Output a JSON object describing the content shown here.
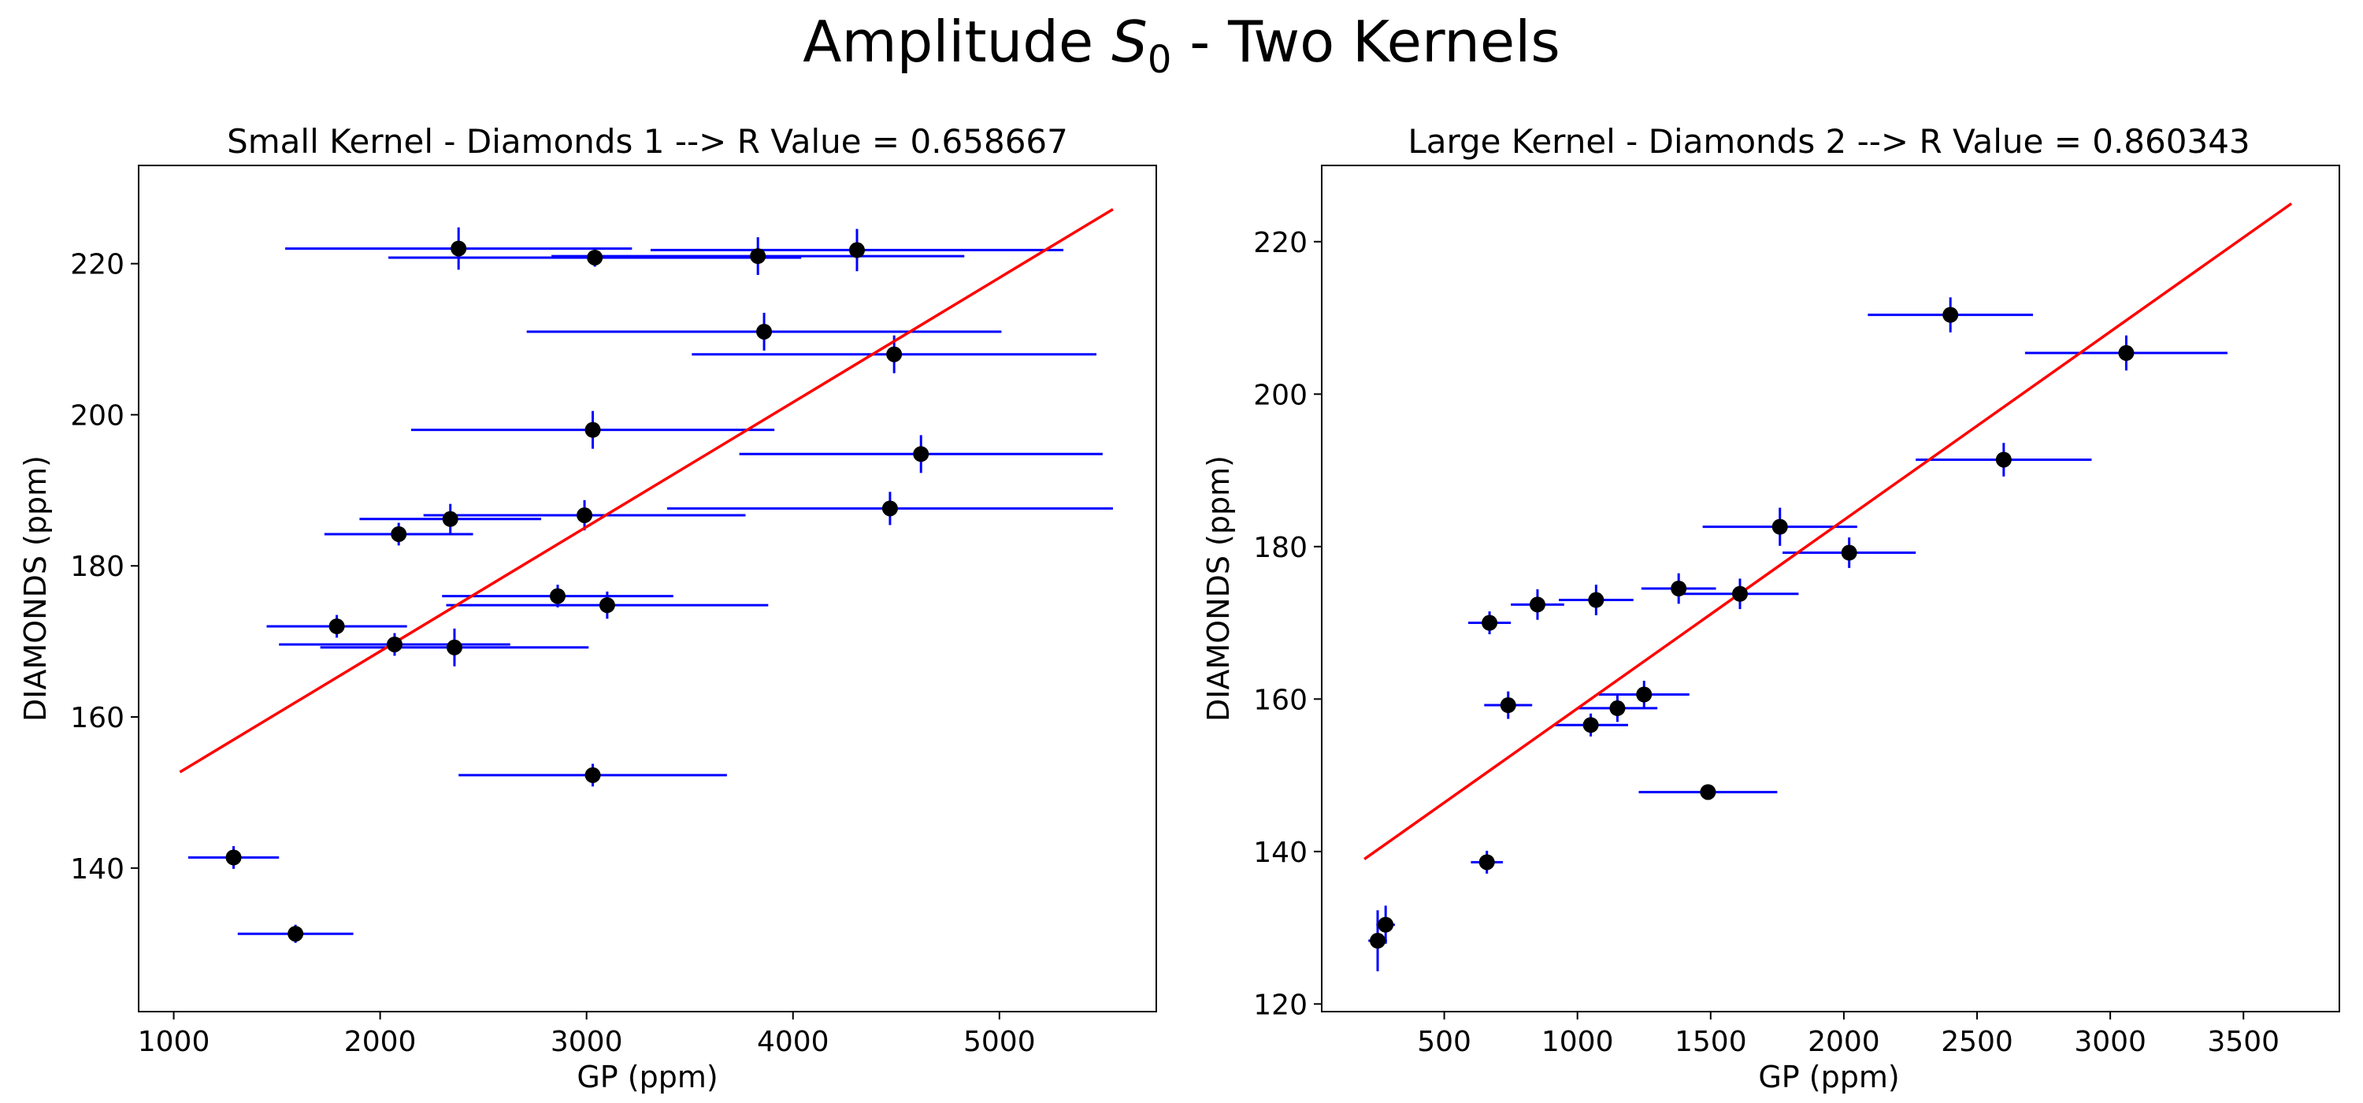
{
  "figure": {
    "title_prefix": "Amplitude ",
    "title_symbol": "S",
    "title_subscript": "0",
    "title_suffix": " - Two Kernels"
  },
  "chart_data": [
    {
      "type": "scatter",
      "title": "Small Kernel - Diamonds 1 --> R Value = 0.658667",
      "xlabel": "GP (ppm)",
      "ylabel": "DIAMONDS (ppm)",
      "xlim": [
        830,
        5760
      ],
      "ylim": [
        121,
        233
      ],
      "xticks": [
        1000,
        2000,
        3000,
        4000,
        5000
      ],
      "yticks": [
        140,
        160,
        180,
        200,
        220
      ],
      "marker_color": "#000000",
      "errorbar_color": "#0000ff",
      "fit_color": "#ff0000",
      "fit_line": {
        "x": [
          1030,
          5550
        ],
        "y": [
          152.7,
          227.2
        ]
      },
      "points": [
        {
          "x": 2380,
          "y": 222.0,
          "xerr": 840,
          "yerr": 2.8
        },
        {
          "x": 3830,
          "y": 221.0,
          "xerr": 1000,
          "yerr": 2.5
        },
        {
          "x": 4310,
          "y": 221.8,
          "xerr": 1000,
          "yerr": 2.8
        },
        {
          "x": 3040,
          "y": 220.8,
          "xerr": 1000,
          "yerr": 1.2
        },
        {
          "x": 3860,
          "y": 211.0,
          "xerr": 1150,
          "yerr": 2.5
        },
        {
          "x": 4490,
          "y": 208.0,
          "xerr": 980,
          "yerr": 2.5
        },
        {
          "x": 3030,
          "y": 198.0,
          "xerr": 880,
          "yerr": 2.5
        },
        {
          "x": 4620,
          "y": 194.8,
          "xerr": 880,
          "yerr": 2.5
        },
        {
          "x": 2340,
          "y": 186.2,
          "xerr": 440,
          "yerr": 2.0
        },
        {
          "x": 2990,
          "y": 186.7,
          "xerr": 780,
          "yerr": 2.0
        },
        {
          "x": 4470,
          "y": 187.6,
          "xerr": 1080,
          "yerr": 2.2
        },
        {
          "x": 2090,
          "y": 184.2,
          "xerr": 360,
          "yerr": 1.5
        },
        {
          "x": 2860,
          "y": 176.0,
          "xerr": 560,
          "yerr": 1.5
        },
        {
          "x": 3100,
          "y": 174.8,
          "xerr": 780,
          "yerr": 1.8
        },
        {
          "x": 1790,
          "y": 172.0,
          "xerr": 340,
          "yerr": 1.5
        },
        {
          "x": 2070,
          "y": 169.6,
          "xerr": 560,
          "yerr": 1.5
        },
        {
          "x": 2360,
          "y": 169.2,
          "xerr": 650,
          "yerr": 2.5
        },
        {
          "x": 3030,
          "y": 152.3,
          "xerr": 650,
          "yerr": 1.5
        },
        {
          "x": 1290,
          "y": 141.4,
          "xerr": 220,
          "yerr": 1.5
        },
        {
          "x": 1590,
          "y": 131.3,
          "xerr": 280,
          "yerr": 1.2
        }
      ]
    },
    {
      "type": "scatter",
      "title": "Large Kernel - Diamonds 2 --> R Value = 0.860343",
      "xlabel": "GP (ppm)",
      "ylabel": "DIAMONDS (ppm)",
      "xlim": [
        40,
        3860
      ],
      "ylim": [
        119,
        230
      ],
      "xticks": [
        500,
        1000,
        1500,
        2000,
        2500,
        3000,
        3500
      ],
      "yticks": [
        120,
        140,
        160,
        180,
        200,
        220
      ],
      "marker_color": "#000000",
      "errorbar_color": "#0000ff",
      "fit_color": "#ff0000",
      "fit_line": {
        "x": [
          200,
          3680
        ],
        "y": [
          139.0,
          225.0
        ]
      },
      "points": [
        {
          "x": 2400,
          "y": 210.4,
          "xerr": 310,
          "yerr": 2.3
        },
        {
          "x": 3060,
          "y": 205.4,
          "xerr": 380,
          "yerr": 2.3
        },
        {
          "x": 2600,
          "y": 191.4,
          "xerr": 330,
          "yerr": 2.2
        },
        {
          "x": 1760,
          "y": 182.6,
          "xerr": 290,
          "yerr": 2.5
        },
        {
          "x": 2020,
          "y": 179.2,
          "xerr": 250,
          "yerr": 2.0
        },
        {
          "x": 1380,
          "y": 174.5,
          "xerr": 140,
          "yerr": 2.0
        },
        {
          "x": 1610,
          "y": 173.8,
          "xerr": 220,
          "yerr": 2.0
        },
        {
          "x": 1070,
          "y": 173.0,
          "xerr": 140,
          "yerr": 2.0
        },
        {
          "x": 850,
          "y": 172.4,
          "xerr": 100,
          "yerr": 2.0
        },
        {
          "x": 670,
          "y": 170.0,
          "xerr": 80,
          "yerr": 1.5
        },
        {
          "x": 740,
          "y": 159.2,
          "xerr": 90,
          "yerr": 1.8
        },
        {
          "x": 1250,
          "y": 160.6,
          "xerr": 170,
          "yerr": 1.8
        },
        {
          "x": 1150,
          "y": 158.8,
          "xerr": 150,
          "yerr": 1.8
        },
        {
          "x": 1050,
          "y": 156.6,
          "xerr": 140,
          "yerr": 1.5
        },
        {
          "x": 1490,
          "y": 147.8,
          "xerr": 260,
          "yerr": 1.0
        },
        {
          "x": 660,
          "y": 138.6,
          "xerr": 60,
          "yerr": 1.5
        },
        {
          "x": 280,
          "y": 130.4,
          "xerr": 35,
          "yerr": 2.5
        },
        {
          "x": 250,
          "y": 128.3,
          "xerr": 35,
          "yerr": 4.0
        }
      ]
    }
  ]
}
